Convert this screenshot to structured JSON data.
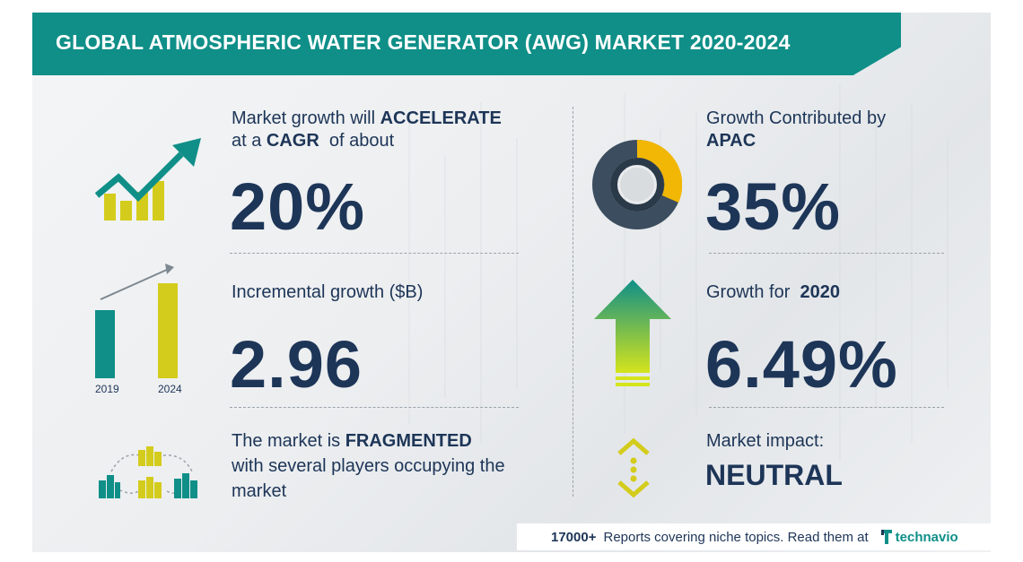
{
  "title": "GLOBAL ATMOSPHERIC WATER GENERATOR (AWG) MARKET 2020-2024",
  "left": {
    "cagr": {
      "line1_prefix": "Market growth will ",
      "line1_bold": "ACCELERATE",
      "line2_prefix": "at a ",
      "line2_bold": "CAGR",
      "line2_suffix": "  of about",
      "value": "20%"
    },
    "incremental": {
      "label": "Incremental growth ($B)",
      "value": "2.96",
      "year_start": "2019",
      "year_end": "2024"
    },
    "fragmented": {
      "line1_prefix": "The market is ",
      "line1_bold": "FRAGMENTED",
      "line2": "with several players occupying the",
      "line3": "market"
    }
  },
  "right": {
    "apac": {
      "line1": "Growth Contributed by",
      "line2_bold": "APAC",
      "value": "35%"
    },
    "growth2020": {
      "label_prefix": "Growth for  ",
      "label_bold": "2020",
      "value": "6.49%"
    },
    "impact": {
      "label": "Market impact:",
      "value": "NEUTRAL"
    }
  },
  "footer": {
    "count": "17000+",
    "text": "Reports covering niche topics. Read them at",
    "brand": "technavio"
  },
  "colors": {
    "teal": "#0f8f88",
    "navy": "#1d3557",
    "yellow": "#d4cc1c",
    "gold": "#f2b705",
    "slate": "#3b4d5e"
  },
  "icons": [
    "growth-chart-icon",
    "bar-growth-icon",
    "fragmented-market-icon",
    "donut-chart-icon",
    "up-arrow-icon",
    "neutral-arrows-icon",
    "technavio-logo-icon"
  ]
}
